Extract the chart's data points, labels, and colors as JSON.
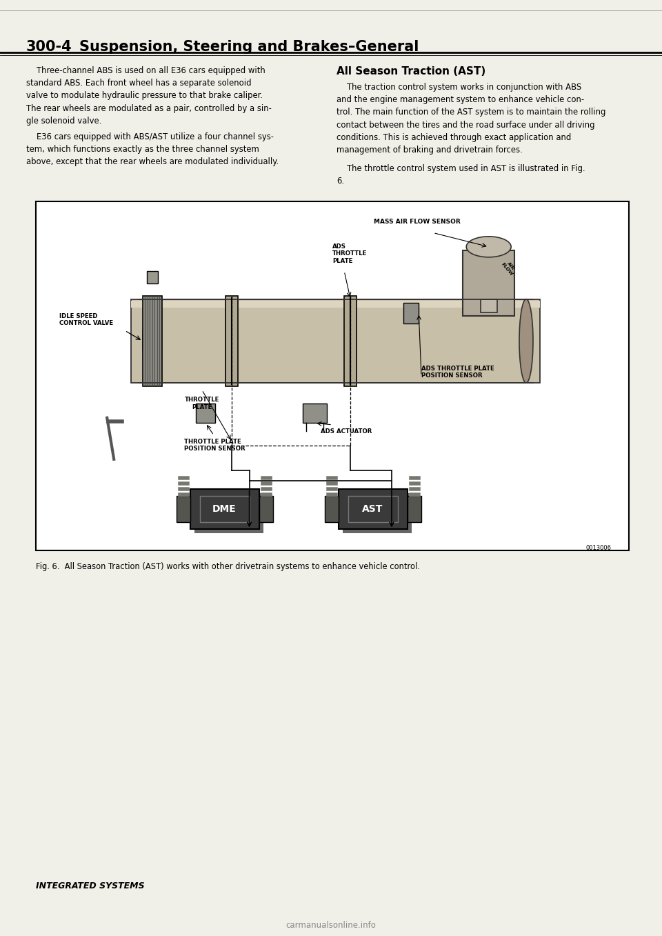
{
  "page_number": "300-4",
  "bg_color": "#f0efe8",
  "left_col_para1": "    Three-channel ABS is used on all E36 cars equipped with\nstandard ABS. Each front wheel has a separate solenoid\nvalve to modulate hydraulic pressure to that brake caliper.\nThe rear wheels are modulated as a pair, controlled by a sin-\ngle solenoid valve.",
  "left_col_para2": "    E36 cars equipped with ABS/AST utilize a four channel sys-\ntem, which functions exactly as the three channel system\nabove, except that the rear wheels are modulated individually.",
  "right_col_title": "All Season Traction (AST)",
  "right_col_para1": "    The traction control system works in conjunction with ABS\nand the engine management system to enhance vehicle con-\ntrol. The main function of the AST system is to maintain the rolling\ncontact between the tires and the road surface under all driving\nconditions. This is achieved through exact application and\nmanagement of braking and drivetrain forces.",
  "right_col_para2": "    The throttle control system used in AST is illustrated in Fig.\n6.",
  "fig_caption": "Fig. 6.  All Season Traction (AST) works with other drivetrain systems to enhance vehicle control.",
  "footer_text": "INTEGRATED SYSTEMS",
  "watermark": "carmanualsonline.info",
  "part_number": "0013006",
  "header_num": "300-4",
  "header_title": "Suspension, Steering and Brakes–General"
}
